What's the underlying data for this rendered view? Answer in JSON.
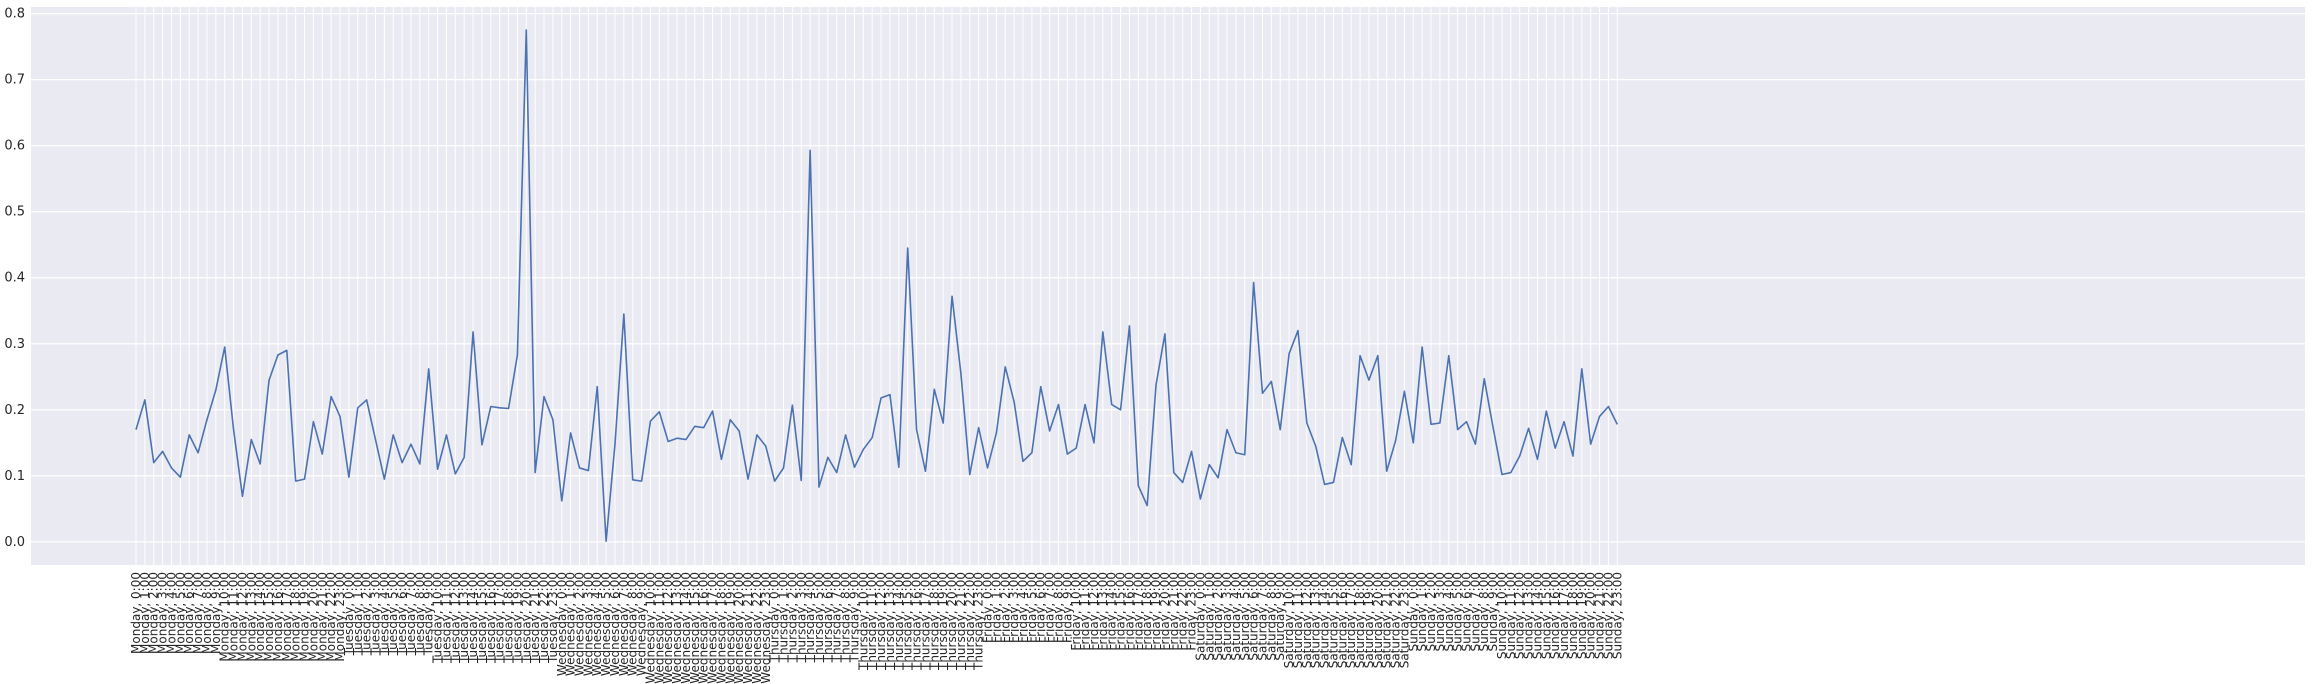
{
  "chart_data": {
    "type": "line",
    "title": "",
    "xlabel": "",
    "ylabel": "",
    "ylim": [
      -0.035,
      0.81
    ],
    "y_ticks": [
      "0.0",
      "0.1",
      "0.2",
      "0.3",
      "0.4",
      "0.5",
      "0.6",
      "0.7",
      "0.8"
    ],
    "grid": true,
    "legend": "none",
    "colors": {
      "background": "#eaeaf2",
      "grid": "#ffffff",
      "line": "#4c72b0"
    },
    "x": [
      "Monday, 0:00",
      "Monday, 1:00",
      "Monday, 2:00",
      "Monday, 3:00",
      "Monday, 4:00",
      "Monday, 5:00",
      "Monday, 6:00",
      "Monday, 7:00",
      "Monday, 8:00",
      "Monday, 9:00",
      "Monday, 10:00",
      "Monday, 11:00",
      "Monday, 12:00",
      "Monday, 13:00",
      "Monday, 14:00",
      "Monday, 15:00",
      "Monday, 16:00",
      "Monday, 17:00",
      "Monday, 18:00",
      "Monday, 19:00",
      "Monday, 20:00",
      "Monday, 21:00",
      "Monday, 22:00",
      "Monday, 23:00",
      "Tuesday, 0:00",
      "Tuesday, 1:00",
      "Tuesday, 2:00",
      "Tuesday, 3:00",
      "Tuesday, 4:00",
      "Tuesday, 5:00",
      "Tuesday, 6:00",
      "Tuesday, 7:00",
      "Tuesday, 8:00",
      "Tuesday, 9:00",
      "Tuesday, 10:00",
      "Tuesday, 11:00",
      "Tuesday, 12:00",
      "Tuesday, 13:00",
      "Tuesday, 14:00",
      "Tuesday, 15:00",
      "Tuesday, 16:00",
      "Tuesday, 17:00",
      "Tuesday, 18:00",
      "Tuesday, 19:00",
      "Tuesday, 20:00",
      "Tuesday, 21:00",
      "Tuesday, 22:00",
      "Tuesday, 23:00",
      "Wednesday, 0:00",
      "Wednesday, 1:00",
      "Wednesday, 2:00",
      "Wednesday, 3:00",
      "Wednesday, 4:00",
      "Wednesday, 5:00",
      "Wednesday, 6:00",
      "Wednesday, 7:00",
      "Wednesday, 8:00",
      "Wednesday, 9:00",
      "Wednesday, 10:00",
      "Wednesday, 11:00",
      "Wednesday, 12:00",
      "Wednesday, 13:00",
      "Wednesday, 14:00",
      "Wednesday, 15:00",
      "Wednesday, 16:00",
      "Wednesday, 17:00",
      "Wednesday, 18:00",
      "Wednesday, 19:00",
      "Wednesday, 20:00",
      "Wednesday, 21:00",
      "Wednesday, 22:00",
      "Wednesday, 23:00",
      "Thursday, 0:00",
      "Thursday, 1:00",
      "Thursday, 2:00",
      "Thursday, 3:00",
      "Thursday, 4:00",
      "Thursday, 5:00",
      "Thursday, 6:00",
      "Thursday, 7:00",
      "Thursday, 8:00",
      "Thursday, 9:00",
      "Thursday, 10:00",
      "Thursday, 11:00",
      "Thursday, 12:00",
      "Thursday, 13:00",
      "Thursday, 14:00",
      "Thursday, 15:00",
      "Thursday, 16:00",
      "Thursday, 17:00",
      "Thursday, 18:00",
      "Thursday, 19:00",
      "Thursday, 20:00",
      "Thursday, 21:00",
      "Thursday, 22:00",
      "Thursday, 23:00",
      "Friday, 0:00",
      "Friday, 1:00",
      "Friday, 2:00",
      "Friday, 3:00",
      "Friday, 4:00",
      "Friday, 5:00",
      "Friday, 6:00",
      "Friday, 7:00",
      "Friday, 8:00",
      "Friday, 9:00",
      "Friday, 10:00",
      "Friday, 11:00",
      "Friday, 12:00",
      "Friday, 13:00",
      "Friday, 14:00",
      "Friday, 15:00",
      "Friday, 16:00",
      "Friday, 17:00",
      "Friday, 18:00",
      "Friday, 19:00",
      "Friday, 20:00",
      "Friday, 21:00",
      "Friday, 22:00",
      "Friday, 23:00",
      "Saturday, 0:00",
      "Saturday, 1:00",
      "Saturday, 2:00",
      "Saturday, 3:00",
      "Saturday, 4:00",
      "Saturday, 5:00",
      "Saturday, 6:00",
      "Saturday, 7:00",
      "Saturday, 8:00",
      "Saturday, 9:00",
      "Saturday, 10:00",
      "Saturday, 11:00",
      "Saturday, 12:00",
      "Saturday, 13:00",
      "Saturday, 14:00",
      "Saturday, 15:00",
      "Saturday, 16:00",
      "Saturday, 17:00",
      "Saturday, 18:00",
      "Saturday, 19:00",
      "Saturday, 20:00",
      "Saturday, 21:00",
      "Saturday, 22:00",
      "Saturday, 23:00",
      "Sunday, 0:00",
      "Sunday, 1:00",
      "Sunday, 2:00",
      "Sunday, 3:00",
      "Sunday, 4:00",
      "Sunday, 5:00",
      "Sunday, 6:00",
      "Sunday, 7:00",
      "Sunday, 8:00",
      "Sunday, 9:00",
      "Sunday, 10:00",
      "Sunday, 11:00",
      "Sunday, 12:00",
      "Sunday, 13:00",
      "Sunday, 14:00",
      "Sunday, 15:00",
      "Sunday, 16:00",
      "Sunday, 17:00",
      "Sunday, 18:00",
      "Sunday, 19:00",
      "Sunday, 20:00",
      "Sunday, 21:00",
      "Sunday, 22:00",
      "Sunday, 23:00"
    ],
    "series": [
      {
        "values": [
          0.17,
          0.215,
          0.12,
          0.137,
          0.112,
          0.098,
          0.162,
          0.135,
          0.185,
          0.23,
          0.295,
          0.17,
          0.069,
          0.155,
          0.118,
          0.245,
          0.283,
          0.29,
          0.092,
          0.095,
          0.182,
          0.133,
          0.22,
          0.19,
          0.098,
          0.203,
          0.215,
          0.155,
          0.095,
          0.162,
          0.12,
          0.148,
          0.118,
          0.262,
          0.11,
          0.162,
          0.103,
          0.128,
          0.318,
          0.147,
          0.205,
          0.203,
          0.202,
          0.283,
          0.775,
          0.105,
          0.22,
          0.185,
          0.062,
          0.165,
          0.112,
          0.108,
          0.235,
          0.001,
          0.148,
          0.345,
          0.094,
          0.092,
          0.183,
          0.197,
          0.152,
          0.157,
          0.155,
          0.175,
          0.173,
          0.198,
          0.125,
          0.185,
          0.168,
          0.095,
          0.162,
          0.145,
          0.092,
          0.112,
          0.207,
          0.093,
          0.593,
          0.083,
          0.128,
          0.105,
          0.162,
          0.113,
          0.14,
          0.158,
          0.218,
          0.223,
          0.113,
          0.445,
          0.17,
          0.107,
          0.231,
          0.18,
          0.372,
          0.255,
          0.102,
          0.173,
          0.112,
          0.165,
          0.265,
          0.212,
          0.122,
          0.135,
          0.235,
          0.168,
          0.208,
          0.133,
          0.142,
          0.208,
          0.15,
          0.318,
          0.208,
          0.2,
          0.327,
          0.085,
          0.055,
          0.238,
          0.315,
          0.105,
          0.09,
          0.137,
          0.065,
          0.117,
          0.097,
          0.17,
          0.135,
          0.132,
          0.393,
          0.225,
          0.243,
          0.17,
          0.285,
          0.32,
          0.18,
          0.145,
          0.087,
          0.09,
          0.158,
          0.117,
          0.282,
          0.245,
          0.282,
          0.107,
          0.153,
          0.228,
          0.15,
          0.295,
          0.178,
          0.18,
          0.282,
          0.17,
          0.182,
          0.148,
          0.247,
          0.173,
          0.102,
          0.105,
          0.13,
          0.172,
          0.125,
          0.198,
          0.142,
          0.182,
          0.13,
          0.262,
          0.148,
          0.19,
          0.205,
          0.178
        ]
      }
    ]
  }
}
